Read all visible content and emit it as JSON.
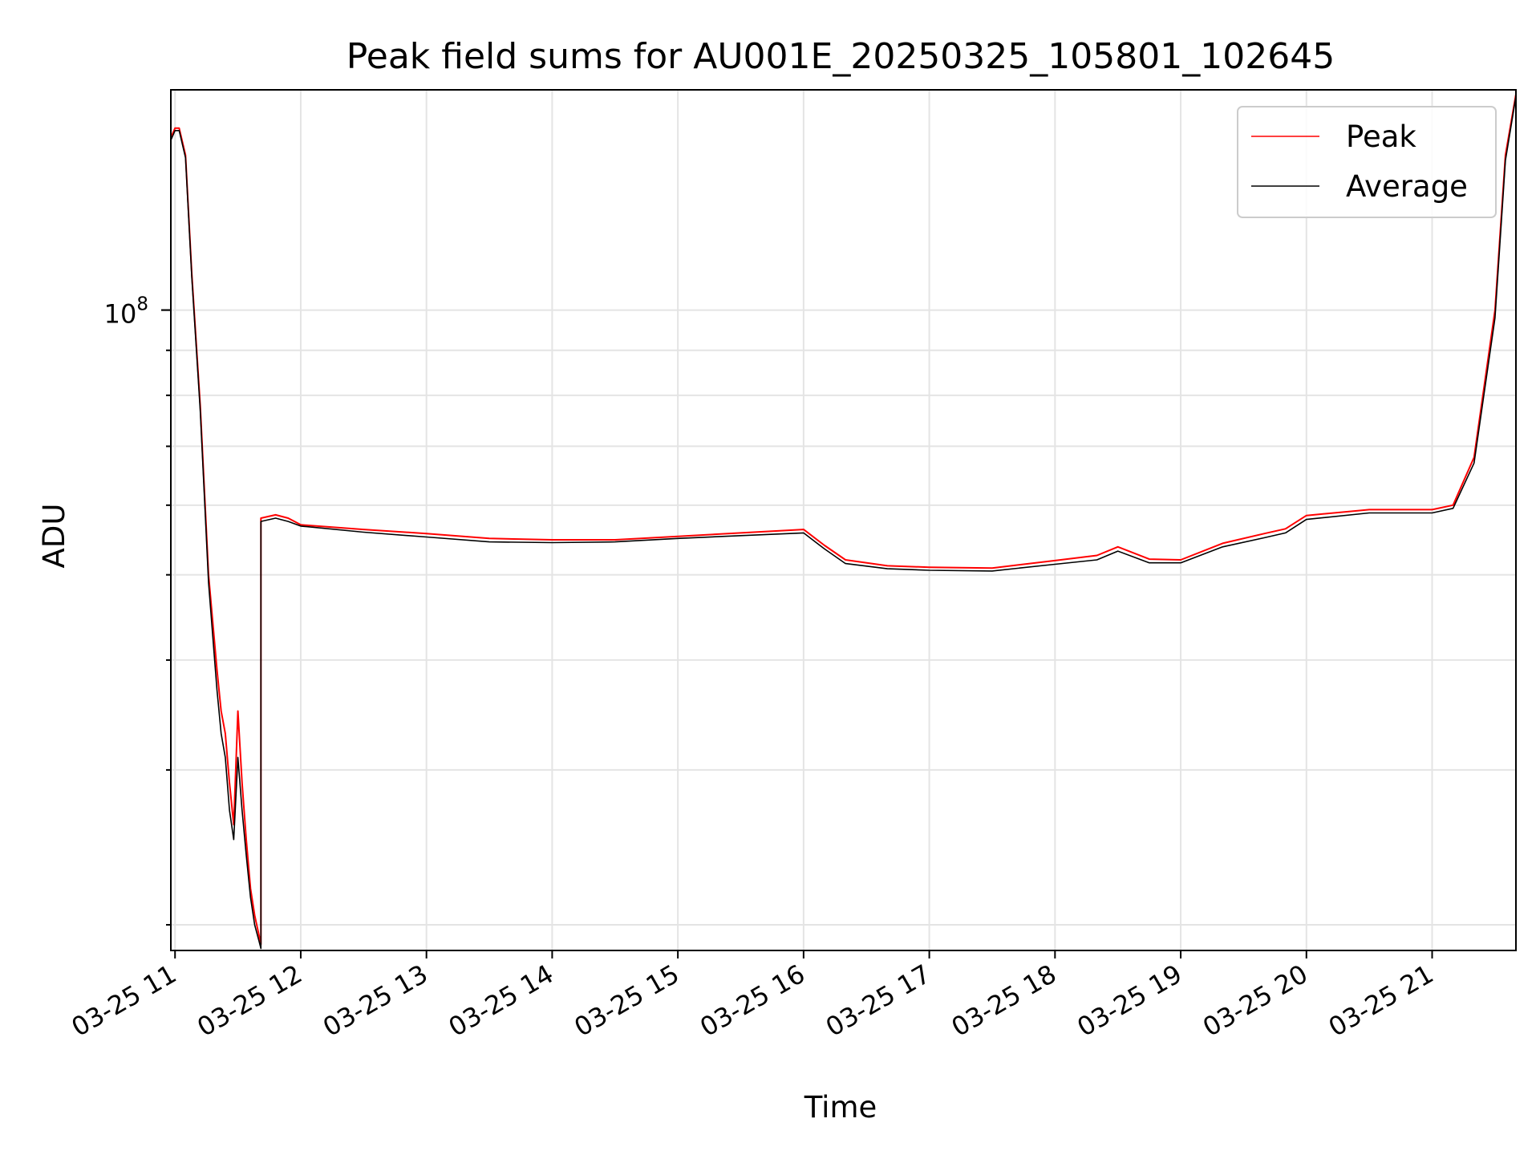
{
  "chart_data": {
    "type": "line",
    "title": "Peak field sums for AU001E_20250325_105801_102645",
    "xlabel": "Time",
    "ylabel": "ADU",
    "x_ticks": [
      "03-25 11",
      "03-25 12",
      "03-25 13",
      "03-25 14",
      "03-25 15",
      "03-25 16",
      "03-25 17",
      "03-25 18",
      "03-25 19",
      "03-25 20",
      "03-25 21"
    ],
    "y_major_tick": {
      "base": "10",
      "exponent": "8",
      "value": 100000000
    },
    "y_scale": "log",
    "xlim": [
      "2025-03-25 10:58",
      "2025-03-25 21:40"
    ],
    "ylim": [
      18700000,
      178000000
    ],
    "grid": true,
    "legend": {
      "position": "top-right",
      "entries": [
        "Peak",
        "Average"
      ]
    },
    "colors": {
      "Peak": "#ff0000",
      "Average": "#000000"
    },
    "series": [
      {
        "name": "Peak",
        "x": [
          "2025-03-25 10:58",
          "2025-03-25 11:00",
          "2025-03-25 11:02",
          "2025-03-25 11:05",
          "2025-03-25 11:08",
          "2025-03-25 11:12",
          "2025-03-25 11:16",
          "2025-03-25 11:20",
          "2025-03-25 11:22",
          "2025-03-25 11:24",
          "2025-03-25 11:26",
          "2025-03-25 11:28",
          "2025-03-25 11:30",
          "2025-03-25 11:32",
          "2025-03-25 11:34",
          "2025-03-25 11:36",
          "2025-03-25 11:38",
          "2025-03-25 11:40",
          "2025-03-25 11:41",
          "2025-03-25 11:41",
          "2025-03-25 11:48",
          "2025-03-25 11:54",
          "2025-03-25 12:00",
          "2025-03-25 12:30",
          "2025-03-25 13:00",
          "2025-03-25 13:30",
          "2025-03-25 14:00",
          "2025-03-25 14:30",
          "2025-03-25 15:00",
          "2025-03-25 15:30",
          "2025-03-25 16:00",
          "2025-03-25 16:10",
          "2025-03-25 16:20",
          "2025-03-25 16:40",
          "2025-03-25 17:00",
          "2025-03-25 17:30",
          "2025-03-25 18:00",
          "2025-03-25 18:20",
          "2025-03-25 18:30",
          "2025-03-25 18:45",
          "2025-03-25 19:00",
          "2025-03-25 19:20",
          "2025-03-25 19:40",
          "2025-03-25 19:50",
          "2025-03-25 20:00",
          "2025-03-25 20:30",
          "2025-03-25 21:00",
          "2025-03-25 21:10",
          "2025-03-25 21:20",
          "2025-03-25 21:30",
          "2025-03-25 21:35",
          "2025-03-25 21:40"
        ],
        "values": [
          157000000,
          161000000,
          161000000,
          150000000,
          110000000,
          78000000,
          50000000,
          39000000,
          35000000,
          33000000,
          29000000,
          26000000,
          35000000,
          29000000,
          25000000,
          22000000,
          20500000,
          19500000,
          19000000,
          58000000,
          58500000,
          58000000,
          57000000,
          56300000,
          55700000,
          55000000,
          54800000,
          54800000,
          55300000,
          55800000,
          56300000,
          54000000,
          52000000,
          51200000,
          51000000,
          50900000,
          51900000,
          52600000,
          53800000,
          52100000,
          52000000,
          54300000,
          55700000,
          56400000,
          58400000,
          59300000,
          59300000,
          60000000,
          68000000,
          100000000,
          150000000,
          176000000
        ]
      },
      {
        "name": "Average",
        "x": [
          "2025-03-25 10:58",
          "2025-03-25 11:00",
          "2025-03-25 11:02",
          "2025-03-25 11:05",
          "2025-03-25 11:08",
          "2025-03-25 11:12",
          "2025-03-25 11:16",
          "2025-03-25 11:20",
          "2025-03-25 11:22",
          "2025-03-25 11:24",
          "2025-03-25 11:26",
          "2025-03-25 11:28",
          "2025-03-25 11:30",
          "2025-03-25 11:32",
          "2025-03-25 11:34",
          "2025-03-25 11:36",
          "2025-03-25 11:38",
          "2025-03-25 11:40",
          "2025-03-25 11:41",
          "2025-03-25 11:41",
          "2025-03-25 11:48",
          "2025-03-25 11:54",
          "2025-03-25 12:00",
          "2025-03-25 12:30",
          "2025-03-25 13:00",
          "2025-03-25 13:30",
          "2025-03-25 14:00",
          "2025-03-25 14:30",
          "2025-03-25 15:00",
          "2025-03-25 15:30",
          "2025-03-25 16:00",
          "2025-03-25 16:10",
          "2025-03-25 16:20",
          "2025-03-25 16:40",
          "2025-03-25 17:00",
          "2025-03-25 17:30",
          "2025-03-25 18:00",
          "2025-03-25 18:20",
          "2025-03-25 18:30",
          "2025-03-25 18:45",
          "2025-03-25 19:00",
          "2025-03-25 19:20",
          "2025-03-25 19:40",
          "2025-03-25 19:50",
          "2025-03-25 20:00",
          "2025-03-25 20:30",
          "2025-03-25 21:00",
          "2025-03-25 21:10",
          "2025-03-25 21:20",
          "2025-03-25 21:30",
          "2025-03-25 21:35",
          "2025-03-25 21:40"
        ],
        "values": [
          156000000,
          160000000,
          160000000,
          149000000,
          109000000,
          77000000,
          49000000,
          37000000,
          33000000,
          31000000,
          27000000,
          25000000,
          31000000,
          27000000,
          24000000,
          21500000,
          20000000,
          19200000,
          18800000,
          57500000,
          58000000,
          57500000,
          56800000,
          55900000,
          55200000,
          54500000,
          54400000,
          54500000,
          55000000,
          55400000,
          55800000,
          53500000,
          51500000,
          50800000,
          50600000,
          50500000,
          51400000,
          52000000,
          53200000,
          51600000,
          51600000,
          53800000,
          55100000,
          55800000,
          57800000,
          58800000,
          58800000,
          59500000,
          67000000,
          98000000,
          148000000,
          175000000
        ]
      }
    ]
  }
}
